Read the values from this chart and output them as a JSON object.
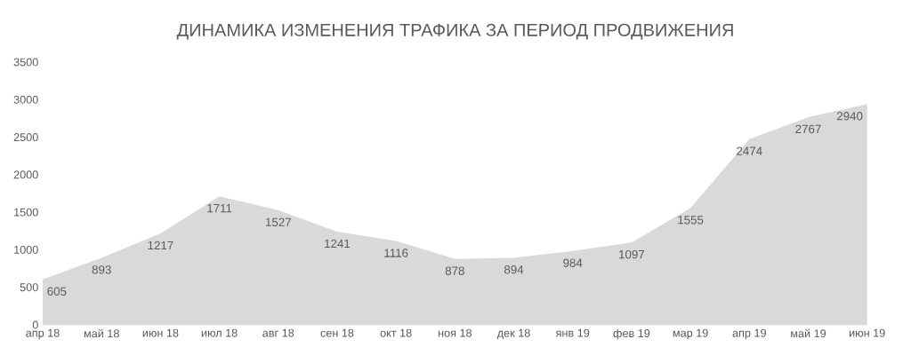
{
  "chart_data": {
    "type": "area",
    "title": "ДИНАМИКА ИЗМЕНЕНИЯ ТРАФИКА ЗА ПЕРИОД ПРОДВИЖЕНИЯ",
    "categories": [
      "апр 18",
      "май 18",
      "июн 18",
      "июл 18",
      "авг 18",
      "сен 18",
      "окт 18",
      "ноя 18",
      "дек 18",
      "янв 19",
      "фев 19",
      "мар 19",
      "апр 19",
      "май 19",
      "июн 19"
    ],
    "values": [
      605,
      893,
      1217,
      1711,
      1527,
      1241,
      1116,
      878,
      894,
      984,
      1097,
      1555,
      2474,
      2767,
      2940
    ],
    "color": "#d9d9d9",
    "ylim": [
      0,
      3500
    ],
    "yticks": [
      0,
      500,
      1000,
      1500,
      2000,
      2500,
      3000,
      3500
    ],
    "data_labels": true
  }
}
